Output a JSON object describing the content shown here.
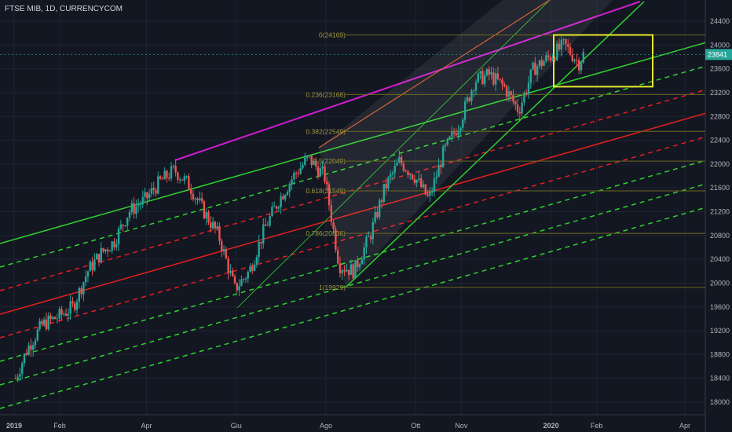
{
  "header": {
    "title": "FTSE MIB, 1D, CURRENCYCOM"
  },
  "chart_data": {
    "type": "candlestick",
    "symbol": "FTSE MIB",
    "interval": "1D",
    "source": "CURRENCYCOM",
    "last_price": "23841",
    "y_ticks": [
      "24400",
      "24000",
      "23600",
      "23200",
      "22800",
      "22400",
      "22000",
      "21600",
      "21200",
      "20800",
      "20400",
      "20000",
      "19600",
      "19200",
      "18800",
      "18400",
      "18000"
    ],
    "x_ticks": [
      "2019",
      "Feb",
      "Apr",
      "Giu",
      "Ago",
      "Ott",
      "Nov",
      "2020",
      "Feb",
      "Apr"
    ],
    "fib_levels": [
      {
        "label": "0(24169)",
        "value": 24169
      },
      {
        "label": "0.236(23168)",
        "value": 23168
      },
      {
        "label": "0.382(22549)",
        "value": 22549
      },
      {
        "label": "0.5(22049)",
        "value": 22049
      },
      {
        "label": "0.618(21549)",
        "value": 21549
      },
      {
        "label": "0.786(20836)",
        "value": 20836
      },
      {
        "label": "1(19929)",
        "value": 19929
      }
    ],
    "price_path": [
      [
        "2019-01-02",
        18400
      ],
      [
        "2019-01-10",
        18900
      ],
      [
        "2019-01-20",
        19300
      ],
      [
        "2019-02-01",
        19450
      ],
      [
        "2019-02-10",
        19600
      ],
      [
        "2019-02-20",
        20200
      ],
      [
        "2019-03-01",
        20500
      ],
      [
        "2019-03-10",
        20700
      ],
      [
        "2019-03-20",
        21200
      ],
      [
        "2019-03-31",
        21400
      ],
      [
        "2019-04-10",
        21700
      ],
      [
        "2019-04-20",
        21900
      ],
      [
        "2019-04-30",
        21650
      ],
      [
        "2019-05-10",
        21200
      ],
      [
        "2019-05-20",
        20800
      ],
      [
        "2019-05-31",
        19900
      ],
      [
        "2019-06-10",
        20200
      ],
      [
        "2019-06-20",
        20900
      ],
      [
        "2019-06-30",
        21400
      ],
      [
        "2019-07-10",
        21800
      ],
      [
        "2019-07-20",
        22100
      ],
      [
        "2019-07-31",
        21800
      ],
      [
        "2019-08-10",
        20300
      ],
      [
        "2019-08-20",
        20200
      ],
      [
        "2019-08-31",
        20800
      ],
      [
        "2019-09-10",
        21600
      ],
      [
        "2019-09-20",
        22050
      ],
      [
        "2019-09-30",
        21800
      ],
      [
        "2019-10-10",
        21400
      ],
      [
        "2019-10-20",
        22200
      ],
      [
        "2019-10-31",
        22700
      ],
      [
        "2019-11-10",
        23400
      ],
      [
        "2019-11-20",
        23500
      ],
      [
        "2019-11-30",
        23300
      ],
      [
        "2019-12-10",
        22900
      ],
      [
        "2019-12-20",
        23600
      ],
      [
        "2019-12-31",
        23800
      ],
      [
        "2020-01-10",
        24000
      ],
      [
        "2020-01-20",
        23700
      ],
      [
        "2020-01-23",
        23841
      ]
    ],
    "grid": true
  }
}
